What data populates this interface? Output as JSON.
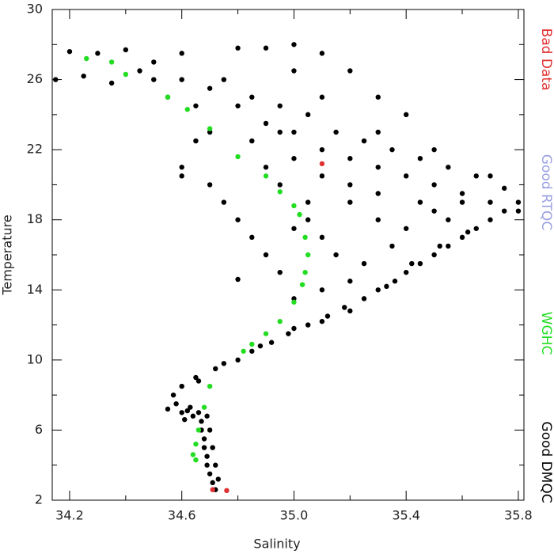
{
  "chart_data": {
    "type": "scatter",
    "xlabel": "Salinity",
    "ylabel": "Temperature",
    "xlim": [
      34.138,
      35.82
    ],
    "ylim": [
      2,
      30
    ],
    "xticks": [
      34.2,
      34.6,
      {
        "value": 35,
        "label": "35.0"
      },
      35.4,
      35.8
    ],
    "xminorticks": [
      34.4,
      34.8,
      35.2,
      35.6
    ],
    "yticks": [
      2,
      6,
      10,
      14,
      18,
      22,
      26,
      30
    ],
    "yminorticks": [
      4,
      8,
      12,
      16,
      20,
      24,
      28
    ],
    "legend": "right",
    "series": [
      {
        "name": "Good DMQC",
        "color": "#000000",
        "x": [
          34.72,
          34.71,
          34.7,
          34.69,
          34.69,
          34.68,
          34.68,
          34.67,
          34.67,
          34.66,
          34.62,
          34.6,
          34.61,
          34.64,
          34.58,
          34.57,
          34.6,
          34.65,
          34.72,
          34.8,
          34.85,
          34.92,
          34.98,
          35.05,
          35.12,
          35.18,
          35.25,
          35.3,
          35.36,
          35.4,
          35.45,
          35.5,
          35.55,
          35.6,
          35.65,
          35.7,
          35.75,
          35.8,
          34.73,
          34.72,
          34.71,
          34.7,
          34.69,
          34.55,
          34.63,
          34.66,
          34.75,
          34.88,
          35.0,
          35.1,
          35.2,
          35.33,
          35.42,
          35.52,
          35.62,
          34.15,
          34.2,
          34.3,
          34.4,
          34.5,
          34.6,
          34.7,
          34.8,
          34.9,
          35.0,
          35.1,
          35.2,
          35.3,
          35.4,
          35.5,
          35.6,
          35.7,
          35.8,
          34.25,
          34.35,
          34.45,
          34.55,
          34.65,
          34.75,
          34.85,
          34.95,
          35.05,
          35.15,
          35.25,
          35.35,
          35.45,
          35.55,
          35.65,
          34.9,
          35.0,
          35.1,
          35.2,
          35.3,
          35.0,
          34.8,
          34.6,
          34.5,
          34.6,
          34.6,
          34.7,
          34.75,
          34.8,
          34.85,
          34.9,
          34.8,
          34.95,
          35.0,
          35.05,
          35.1,
          35.2,
          35.3,
          35.4,
          35.5,
          35.15,
          35.25,
          34.9,
          35.0,
          35.2,
          35.3,
          35.45,
          35.55,
          35.6,
          35.75,
          35.7,
          35.5,
          35.4,
          35.3,
          35.1,
          34.85,
          34.95,
          35.05,
          35.1,
          35.35,
          35.2,
          35.1,
          35.0,
          34.95,
          34.7,
          34.65
        ],
        "values": [
          2.6,
          3,
          3.5,
          4,
          4.5,
          5,
          5.5,
          6,
          6.5,
          7,
          7.1,
          7,
          6.6,
          6.8,
          7.5,
          8,
          8.5,
          9,
          9.5,
          10,
          10.5,
          11,
          11.5,
          12,
          12.5,
          13,
          13.5,
          14,
          14.5,
          15,
          15.5,
          16,
          16.5,
          17,
          17.5,
          18,
          18.5,
          19,
          3.2,
          4,
          5,
          6,
          6.8,
          7.2,
          7.3,
          8.8,
          9.8,
          10.8,
          11.8,
          12.2,
          12.8,
          14.2,
          15.5,
          16.5,
          17.3,
          26,
          27.6,
          27.5,
          27.7,
          27,
          26,
          25.5,
          24.5,
          23.5,
          23,
          22,
          21.5,
          21,
          20.5,
          20,
          19.5,
          19,
          18.5,
          26.2,
          25.8,
          26.5,
          25,
          24.5,
          26,
          25,
          24.5,
          24,
          23,
          22.5,
          22,
          21.5,
          21,
          20.5,
          27.8,
          28,
          27.5,
          26.5,
          25,
          26.5,
          27.8,
          27.5,
          26,
          21,
          20.5,
          20,
          19,
          18,
          17,
          16,
          14.6,
          15,
          17.5,
          19,
          20.5,
          19,
          18,
          17.5,
          18.5,
          16,
          15.5,
          21,
          21.5,
          20,
          19.5,
          19,
          18,
          19,
          19.8,
          20.5,
          22,
          24,
          23,
          25,
          22.5,
          20,
          18,
          17,
          16.5,
          14.5,
          14,
          13.5,
          23,
          23,
          22.5
        ]
      },
      {
        "name": "WGHC",
        "color": "#22dd22",
        "x": [
          34.26,
          34.35,
          34.4,
          34.55,
          34.62,
          34.7,
          34.8,
          34.9,
          34.95,
          35.0,
          35.02,
          35.04,
          35.05,
          35.04,
          35.03,
          35.0,
          34.95,
          34.9,
          34.85,
          34.82,
          34.7,
          34.68,
          34.66,
          34.65,
          34.64,
          34.65
        ],
        "values": [
          27.2,
          27,
          26.3,
          25,
          24.3,
          23.2,
          21.6,
          20.5,
          19.6,
          18.8,
          18.3,
          17,
          16,
          15,
          14.3,
          13.3,
          12.2,
          11.5,
          10.9,
          10.5,
          8.5,
          7.3,
          6,
          5.2,
          4.6,
          4.3
        ]
      },
      {
        "name": "Good RTQC",
        "color": "#9aa0e0",
        "x": [],
        "values": []
      },
      {
        "name": "Bad Data",
        "color": "#e03030",
        "x": [
          34.71,
          34.76,
          35.1
        ],
        "values": [
          2.6,
          2.55,
          21.2
        ]
      }
    ]
  }
}
